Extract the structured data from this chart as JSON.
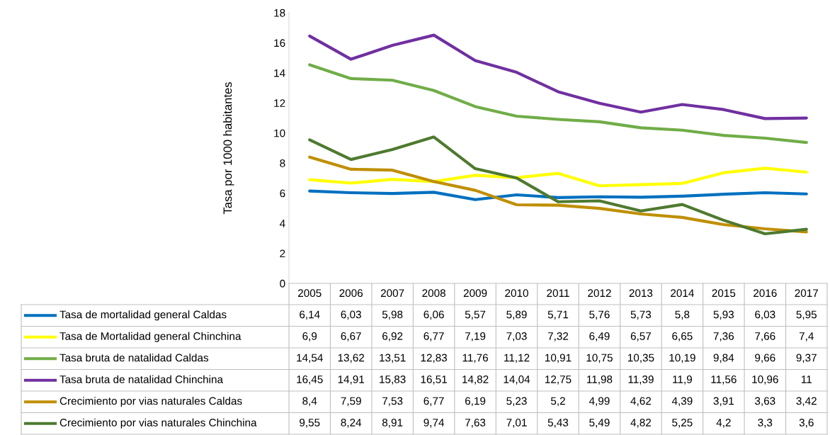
{
  "chart_data": {
    "type": "line",
    "ylabel": "Tasa por 1000 habitantes",
    "categories": [
      "2005",
      "2006",
      "2007",
      "2008",
      "2009",
      "2010",
      "2011",
      "2012",
      "2013",
      "2014",
      "2015",
      "2016",
      "2017"
    ],
    "series": [
      {
        "name": "Tasa de mortalidad general Caldas",
        "color": "#0070c0",
        "values": [
          6.14,
          6.03,
          5.98,
          6.06,
          5.57,
          5.89,
          5.71,
          5.76,
          5.73,
          5.8,
          5.93,
          6.03,
          5.95
        ],
        "value_labels": [
          "6,14",
          "6,03",
          "5,98",
          "6,06",
          "5,57",
          "5,89",
          "5,71",
          "5,76",
          "5,73",
          "5,8",
          "5,93",
          "6,03",
          "5,95"
        ]
      },
      {
        "name": "Tasa de Mortalidad general Chinchina",
        "color": "#ffff00",
        "values": [
          6.9,
          6.67,
          6.92,
          6.77,
          7.19,
          7.03,
          7.32,
          6.49,
          6.57,
          6.65,
          7.36,
          7.66,
          7.4
        ],
        "value_labels": [
          "6,9",
          "6,67",
          "6,92",
          "6,77",
          "7,19",
          "7,03",
          "7,32",
          "6,49",
          "6,57",
          "6,65",
          "7,36",
          "7,66",
          "7,4"
        ]
      },
      {
        "name": "Tasa bruta de natalidad Caldas",
        "color": "#70ad47",
        "values": [
          14.54,
          13.62,
          13.51,
          12.83,
          11.76,
          11.12,
          10.91,
          10.75,
          10.35,
          10.19,
          9.84,
          9.66,
          9.37
        ],
        "value_labels": [
          "14,54",
          "13,62",
          "13,51",
          "12,83",
          "11,76",
          "11,12",
          "10,91",
          "10,75",
          "10,35",
          "10,19",
          "9,84",
          "9,66",
          "9,37"
        ]
      },
      {
        "name": "Tasa bruta de natalidad Chinchina",
        "color": "#7030a0",
        "values": [
          16.45,
          14.91,
          15.83,
          16.51,
          14.82,
          14.04,
          12.75,
          11.98,
          11.39,
          11.9,
          11.56,
          10.96,
          11
        ],
        "value_labels": [
          "16,45",
          "14,91",
          "15,83",
          "16,51",
          "14,82",
          "14,04",
          "12,75",
          "11,98",
          "11,39",
          "11,9",
          "11,56",
          "10,96",
          "11"
        ]
      },
      {
        "name": "Crecimiento por vias naturales Caldas",
        "color": "#bf8f00",
        "values": [
          8.4,
          7.59,
          7.53,
          6.77,
          6.19,
          5.23,
          5.2,
          4.99,
          4.62,
          4.39,
          3.91,
          3.63,
          3.42
        ],
        "value_labels": [
          "8,4",
          "7,59",
          "7,53",
          "6,77",
          "6,19",
          "5,23",
          "5,2",
          "4,99",
          "4,62",
          "4,39",
          "3,91",
          "3,63",
          "3,42"
        ]
      },
      {
        "name": "Crecimiento por vias naturales Chinchina",
        "color": "#4e7a2f",
        "values": [
          9.55,
          8.24,
          8.91,
          9.74,
          7.63,
          7.01,
          5.43,
          5.49,
          4.82,
          5.25,
          4.2,
          3.3,
          3.6
        ],
        "value_labels": [
          "9,55",
          "8,24",
          "8,91",
          "9,74",
          "7,63",
          "7,01",
          "5,43",
          "5,49",
          "4,82",
          "5,25",
          "4,2",
          "3,3",
          "3,6"
        ]
      }
    ],
    "ylim": [
      0,
      18
    ],
    "yticks": [
      0,
      2,
      4,
      6,
      8,
      10,
      12,
      14,
      16,
      18
    ],
    "grid": false,
    "legend": "bottom",
    "marker": "none",
    "line_style": "solid"
  }
}
